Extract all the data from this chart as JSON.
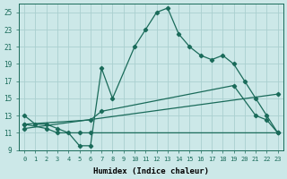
{
  "xlabel": "Humidex (Indice chaleur)",
  "xlim": [
    -0.5,
    23.5
  ],
  "ylim": [
    9,
    26
  ],
  "yticks": [
    9,
    11,
    13,
    15,
    17,
    19,
    21,
    23,
    25
  ],
  "xticks": [
    0,
    1,
    2,
    3,
    4,
    5,
    6,
    7,
    8,
    9,
    10,
    11,
    12,
    13,
    14,
    15,
    16,
    17,
    18,
    19,
    20,
    21,
    22,
    23
  ],
  "bg_color": "#cce8e8",
  "grid_color": "#aacfcf",
  "line_color": "#1a6b5a",
  "line1_x": [
    0,
    1,
    2,
    3,
    4,
    5,
    6,
    7,
    8,
    10,
    11,
    12,
    13,
    14,
    15,
    16,
    17,
    18,
    19,
    20,
    21,
    22,
    23
  ],
  "line1_y": [
    13,
    12,
    12,
    11.5,
    11,
    9.5,
    9.5,
    18.5,
    15,
    21,
    23,
    25,
    25.5,
    22.5,
    21,
    20,
    19.5,
    20,
    19,
    17,
    15,
    13,
    11
  ],
  "line2_x": [
    0,
    2,
    3,
    5,
    6,
    23
  ],
  "line2_y": [
    12,
    11.5,
    11,
    11,
    11,
    11
  ],
  "line3_x": [
    0,
    6,
    7,
    19,
    21,
    22,
    23
  ],
  "line3_y": [
    12,
    12.5,
    13.5,
    16.5,
    13,
    12.5,
    11
  ],
  "line4_x": [
    0,
    23
  ],
  "line4_y": [
    11.5,
    15.5
  ]
}
